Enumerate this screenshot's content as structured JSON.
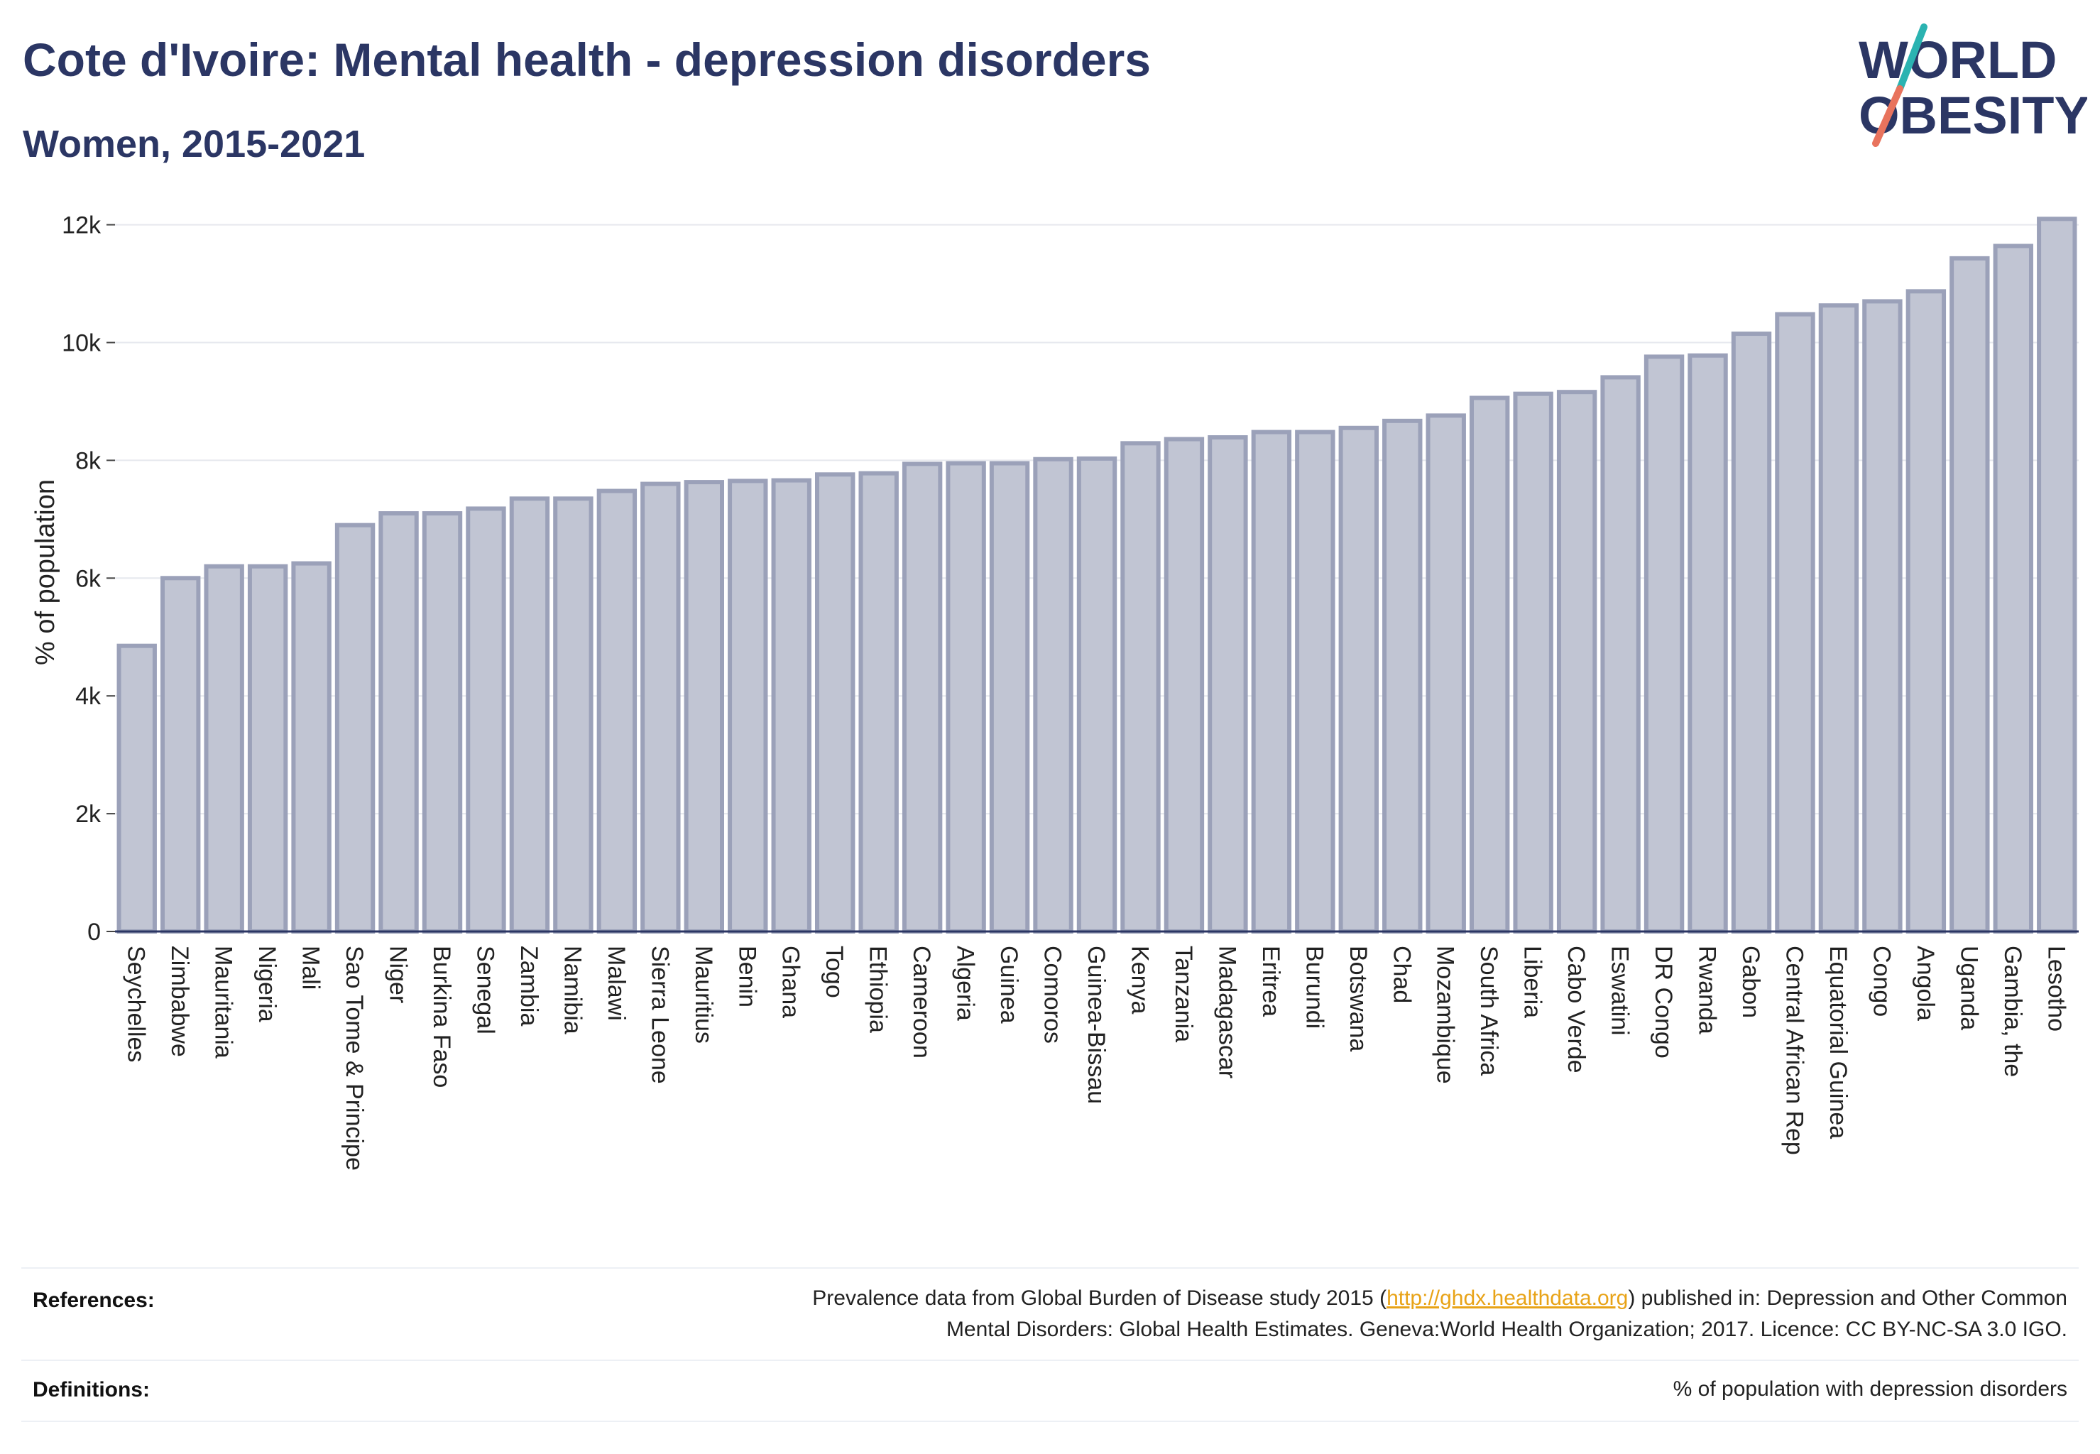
{
  "title": "Cote d'Ivoire: Mental health - depression disorders",
  "subtitle": "Women, 2015-2021",
  "logo": {
    "line1": "WORLD",
    "line2": "OBESITY",
    "icon": "world-obesity-logo-icon"
  },
  "colors": {
    "bar_fill": "#c1c5d3",
    "bar_stroke": "#9ba1b9",
    "text": "#2b3664",
    "link": "#e8a317",
    "logo_slash_top": "#2bb3b1",
    "logo_slash_bottom": "#e8735d"
  },
  "chart_data": {
    "type": "bar",
    "ylabel": "% of population",
    "ylim": [
      0,
      12200
    ],
    "yticks": [
      0,
      2000,
      4000,
      6000,
      8000,
      10000,
      12000
    ],
    "ytick_labels": [
      "0",
      "2k",
      "4k",
      "6k",
      "8k",
      "10k",
      "12k"
    ],
    "grid": true,
    "categories": [
      "Seychelles",
      "Zimbabwe",
      "Mauritania",
      "Nigeria",
      "Mali",
      "Sao Tome & Principe",
      "Niger",
      "Burkina Faso",
      "Senegal",
      "Zambia",
      "Namibia",
      "Malawi",
      "Sierra Leone",
      "Mauritius",
      "Benin",
      "Ghana",
      "Togo",
      "Ethiopia",
      "Cameroon",
      "Algeria",
      "Guinea",
      "Comoros",
      "Guinea-Bissau",
      "Kenya",
      "Tanzania",
      "Madagascar",
      "Eritrea",
      "Burundi",
      "Botswana",
      "Chad",
      "Mozambique",
      "South Africa",
      "Liberia",
      "Cabo Verde",
      "Eswatini",
      "DR Congo",
      "Rwanda",
      "Gabon",
      "Central African Rep",
      "Equatorial Guinea",
      "Congo",
      "Angola",
      "Uganda",
      "Gambia, the",
      "Lesotho"
    ],
    "values": [
      4850,
      6000,
      6200,
      6200,
      6250,
      6900,
      7100,
      7100,
      7180,
      7350,
      7350,
      7480,
      7600,
      7630,
      7650,
      7660,
      7760,
      7780,
      7940,
      7950,
      7950,
      8020,
      8030,
      8290,
      8360,
      8390,
      8480,
      8480,
      8550,
      8670,
      8760,
      9060,
      9130,
      9160,
      9410,
      9760,
      9780,
      10150,
      10480,
      10630,
      10700,
      10870,
      11430,
      11640,
      12100
    ]
  },
  "references": {
    "label": "References:",
    "text_before": "Prevalence data from Global Burden of Disease study 2015 (",
    "link": "http://ghdx.healthdata.org",
    "text_after": ") published in: Depression and Other Common",
    "line2": "Mental Disorders: Global Health Estimates. Geneva:World Health Organization; 2017. Licence: CC BY-NC-SA 3.0 IGO."
  },
  "definitions": {
    "label": "Definitions:",
    "text": "% of population with depression disorders"
  }
}
